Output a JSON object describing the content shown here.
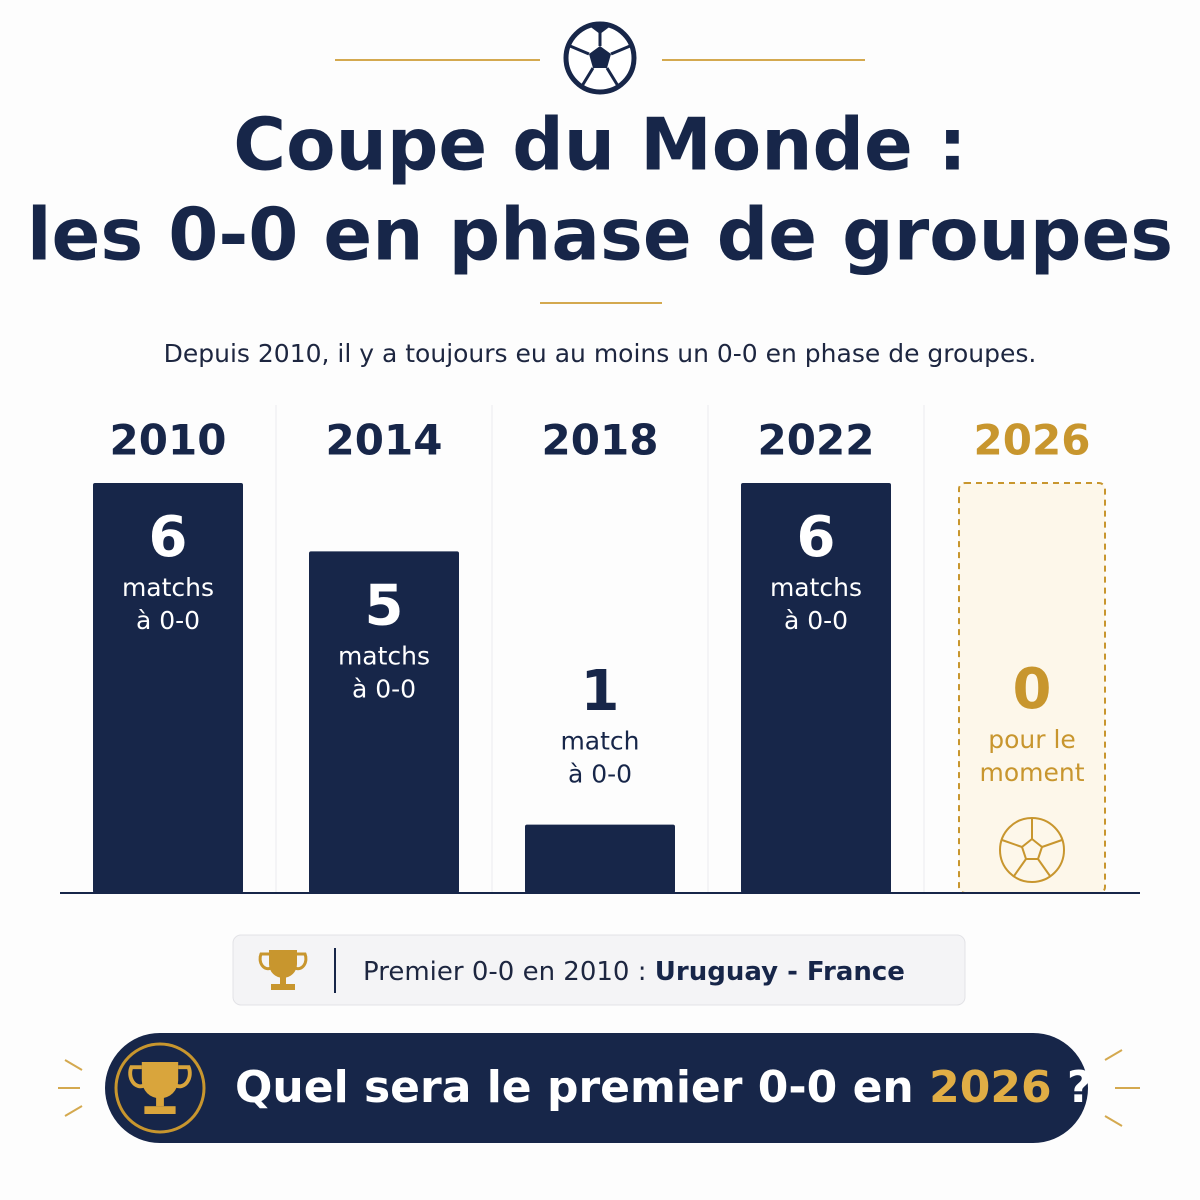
{
  "chart_data": {
    "type": "bar",
    "title": [
      "Coupe du Monde :",
      "les 0-0 en phase de groupes"
    ],
    "subtitle": "Depuis 2010, il y a toujours eu au moins un 0-0 en phase de groupes.",
    "categories": [
      "2010",
      "2014",
      "2018",
      "2022",
      "2026"
    ],
    "values": [
      6,
      5,
      1,
      6,
      0
    ],
    "sublabels": [
      [
        "matchs",
        "à 0-0"
      ],
      [
        "matchs",
        "à 0-0"
      ],
      [
        "match",
        "à 0-0"
      ],
      [
        "matchs",
        "à 0-0"
      ],
      [
        "pour le",
        "moment"
      ]
    ],
    "colors": [
      "#172649",
      "#172649",
      "#172649",
      "#172649",
      "#c8962e"
    ]
  },
  "footnote": {
    "text": "Premier 0-0 en 2010 :",
    "match": "Uruguay - France"
  },
  "cta": {
    "text": "Quel sera le premier 0-0 en",
    "highlight": "2026",
    "end": "?"
  }
}
